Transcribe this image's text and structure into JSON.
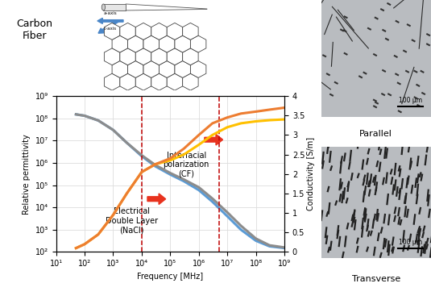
{
  "diagram": {
    "label": "Carbon\nFiber",
    "axis_labels": [
      "a-axis",
      "c-axis"
    ]
  },
  "chart_data": {
    "type": "line",
    "x": [
      50,
      100,
      300,
      1000,
      3000,
      10000,
      30000,
      100000,
      300000,
      1000000,
      3000000,
      10000000,
      30000000,
      100000000,
      300000000,
      1000000000
    ],
    "series": [
      {
        "color": "#5b9bd5",
        "type": "line",
        "line_style": "solid",
        "axis": "y",
        "values": [
          150000000,
          130000000,
          80000000,
          30000000,
          8000000,
          2000000,
          700000,
          300000,
          150000,
          60000,
          18000,
          4000,
          1000,
          320,
          180,
          150
        ]
      },
      {
        "color": "#8c8c8c",
        "type": "line",
        "line_style": "solid",
        "axis": "y",
        "values": [
          150000000,
          130000000,
          80000000,
          30000000,
          8000000,
          2200000,
          800000,
          350000,
          180000,
          80000,
          25000,
          6000,
          1500,
          400,
          200,
          160
        ]
      },
      {
        "color": "#ffc000",
        "type": "line",
        "line_style": "solid",
        "axis": "y2",
        "values": [
          0.1,
          0.2,
          0.45,
          0.95,
          1.5,
          2.05,
          2.25,
          2.35,
          2.5,
          2.75,
          3.0,
          3.2,
          3.3,
          3.35,
          3.38,
          3.4
        ]
      },
      {
        "color": "#ed7d31",
        "type": "line",
        "line_style": "solid",
        "axis": "y2",
        "values": [
          0.1,
          0.2,
          0.45,
          0.95,
          1.5,
          2.05,
          2.25,
          2.4,
          2.65,
          3.0,
          3.3,
          3.45,
          3.55,
          3.6,
          3.65,
          3.7
        ]
      }
    ],
    "x_label": "Frequency [MHz]",
    "y_label": "Relative permittivity",
    "y2_label": "Conductivity [S/m]",
    "log": true,
    "grid": true,
    "xlim": [
      10,
      1000000000
    ],
    "xticks": [
      {
        "value": 10,
        "label": "10¹"
      },
      {
        "value": 100,
        "label": "10²"
      },
      {
        "value": 1000,
        "label": "10³"
      },
      {
        "value": 10000,
        "label": "10⁴"
      },
      {
        "value": 100000,
        "label": "10⁵"
      },
      {
        "value": 1000000,
        "label": "10⁶"
      },
      {
        "value": 10000000,
        "label": "10⁷"
      },
      {
        "value": 100000000,
        "label": "10⁸"
      },
      {
        "value": 1000000000,
        "label": "10⁹"
      }
    ],
    "ylim": [
      100,
      1000000000
    ],
    "yticks": [
      {
        "value": 100,
        "label": "10²"
      },
      {
        "value": 1000,
        "label": "10³"
      },
      {
        "value": 10000,
        "label": "10⁴"
      },
      {
        "value": 100000,
        "label": "10⁵"
      },
      {
        "value": 1000000,
        "label": "10⁶"
      },
      {
        "value": 10000000,
        "label": "10⁷"
      },
      {
        "value": 100000000,
        "label": "10⁸"
      },
      {
        "value": 1000000000,
        "label": "10⁹"
      }
    ],
    "y2lim": [
      0,
      4
    ],
    "y2ticks": [
      0,
      0.5,
      1,
      1.5,
      2,
      2.5,
      3,
      3.5,
      4
    ],
    "reference_lines": {
      "x": [
        10000,
        5000000
      ],
      "color": "#c00000",
      "line_style": "dashed"
    },
    "annotations": [
      "Electrical\nDouble Layer\n(NaCl)",
      "Interfacial\npolarization\n(CF)"
    ]
  },
  "images": [
    {
      "caption": "Parallel",
      "scale_bar": "100 μm"
    },
    {
      "caption": "Transverse",
      "scale_bar": "100 μm"
    }
  ]
}
